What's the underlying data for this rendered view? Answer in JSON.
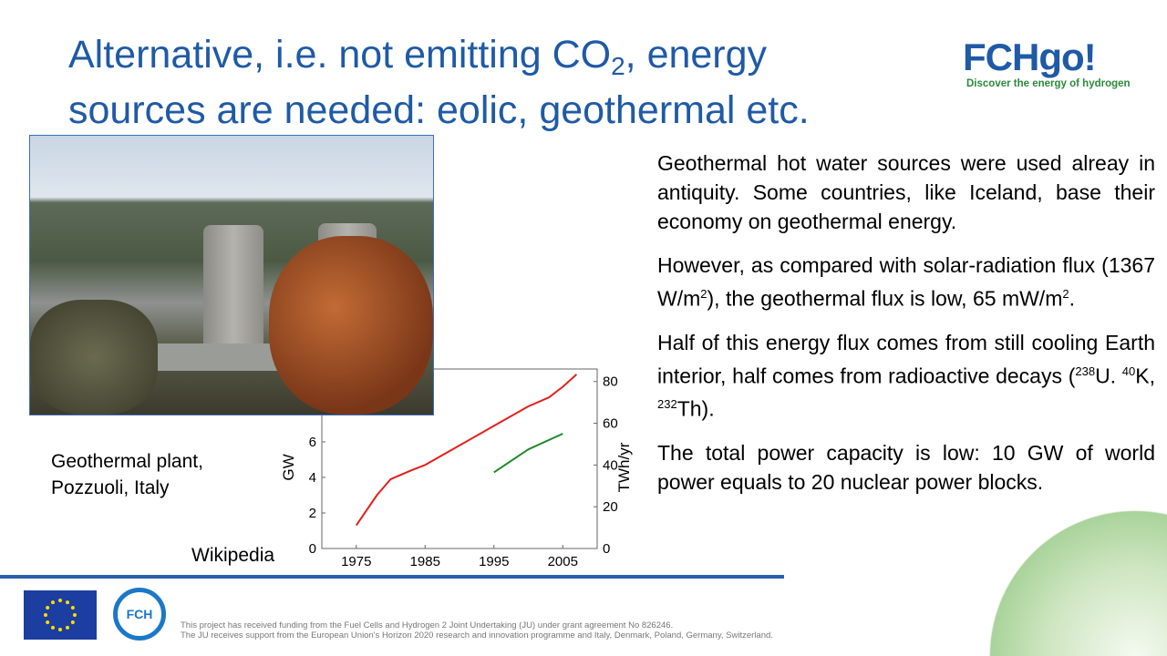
{
  "title": {
    "line1_pre": "Alternative, i.e. not emitting CO",
    "line1_sub": "2",
    "line1_post": ", energy",
    "line2": "sources are needed: eolic, geothermal etc."
  },
  "logo": {
    "text": "FCHgo!",
    "tagline": "Discover the energy of hydrogen"
  },
  "photo": {
    "caption_line1": "Geothermal plant,",
    "caption_line2": "Pozzuoli, Italy",
    "credit": "Wikipedia"
  },
  "paragraphs": {
    "p1": "Geothermal hot water sources were used alreay in antiquity. Some countries, like Iceland, base their economy on geothermal energy.",
    "p2_a": "However, as compared with solar-radiation flux (1367 W/m",
    "p2_sup1": "2",
    "p2_b": "), the geothermal flux is low, 65 mW/m",
    "p2_sup2": "2",
    "p2_c": ".",
    "p3_a": "Half of this energy flux comes from still cooling Earth interior, half comes from radioactive decays (",
    "p3_s1": "238",
    "p3_b": "U. ",
    "p3_s2": "40",
    "p3_c": "K, ",
    "p3_s3": "232",
    "p3_d": "Th).",
    "p4": "The total power capacity is low: 10 GW of world power equals to 20 nuclear power blocks."
  },
  "footer": {
    "line1": "This project has received funding from the Fuel Cells and Hydrogen 2 Joint Undertaking (JU) under grant agreement No 826246.",
    "line2": "The JU receives support from the European Union's Horizon 2020 research and innovation programme and Italy, Denmark, Poland, Germany, Switzerland.",
    "fch_logo": "FCH"
  },
  "chart_data": {
    "type": "line",
    "xlabel": "",
    "ylabel": "GW",
    "y2label": "TWh/yr",
    "xlim": [
      1970,
      2010
    ],
    "ylim": [
      0,
      10.1
    ],
    "y2lim": [
      0,
      86
    ],
    "xticks": [
      "1975",
      "1985",
      "1995",
      "2005"
    ],
    "yticks": [
      "0",
      "2",
      "4",
      "6"
    ],
    "y2ticks": [
      "0",
      "20",
      "40",
      "60",
      "80"
    ],
    "series": [
      {
        "axis": "left",
        "color": "#e0201b",
        "x": [
          1975,
          1978,
          1980,
          1983,
          1985,
          1990,
          1995,
          2000,
          2003,
          2005,
          2007
        ],
        "y": [
          1.3,
          3.0,
          3.9,
          4.4,
          4.7,
          5.8,
          6.9,
          8.0,
          8.5,
          9.1,
          9.8
        ]
      },
      {
        "axis": "right",
        "color": "#1f8a2a",
        "x": [
          1995,
          2000,
          2005
        ],
        "y": [
          36.5,
          47.5,
          55
        ]
      }
    ]
  }
}
